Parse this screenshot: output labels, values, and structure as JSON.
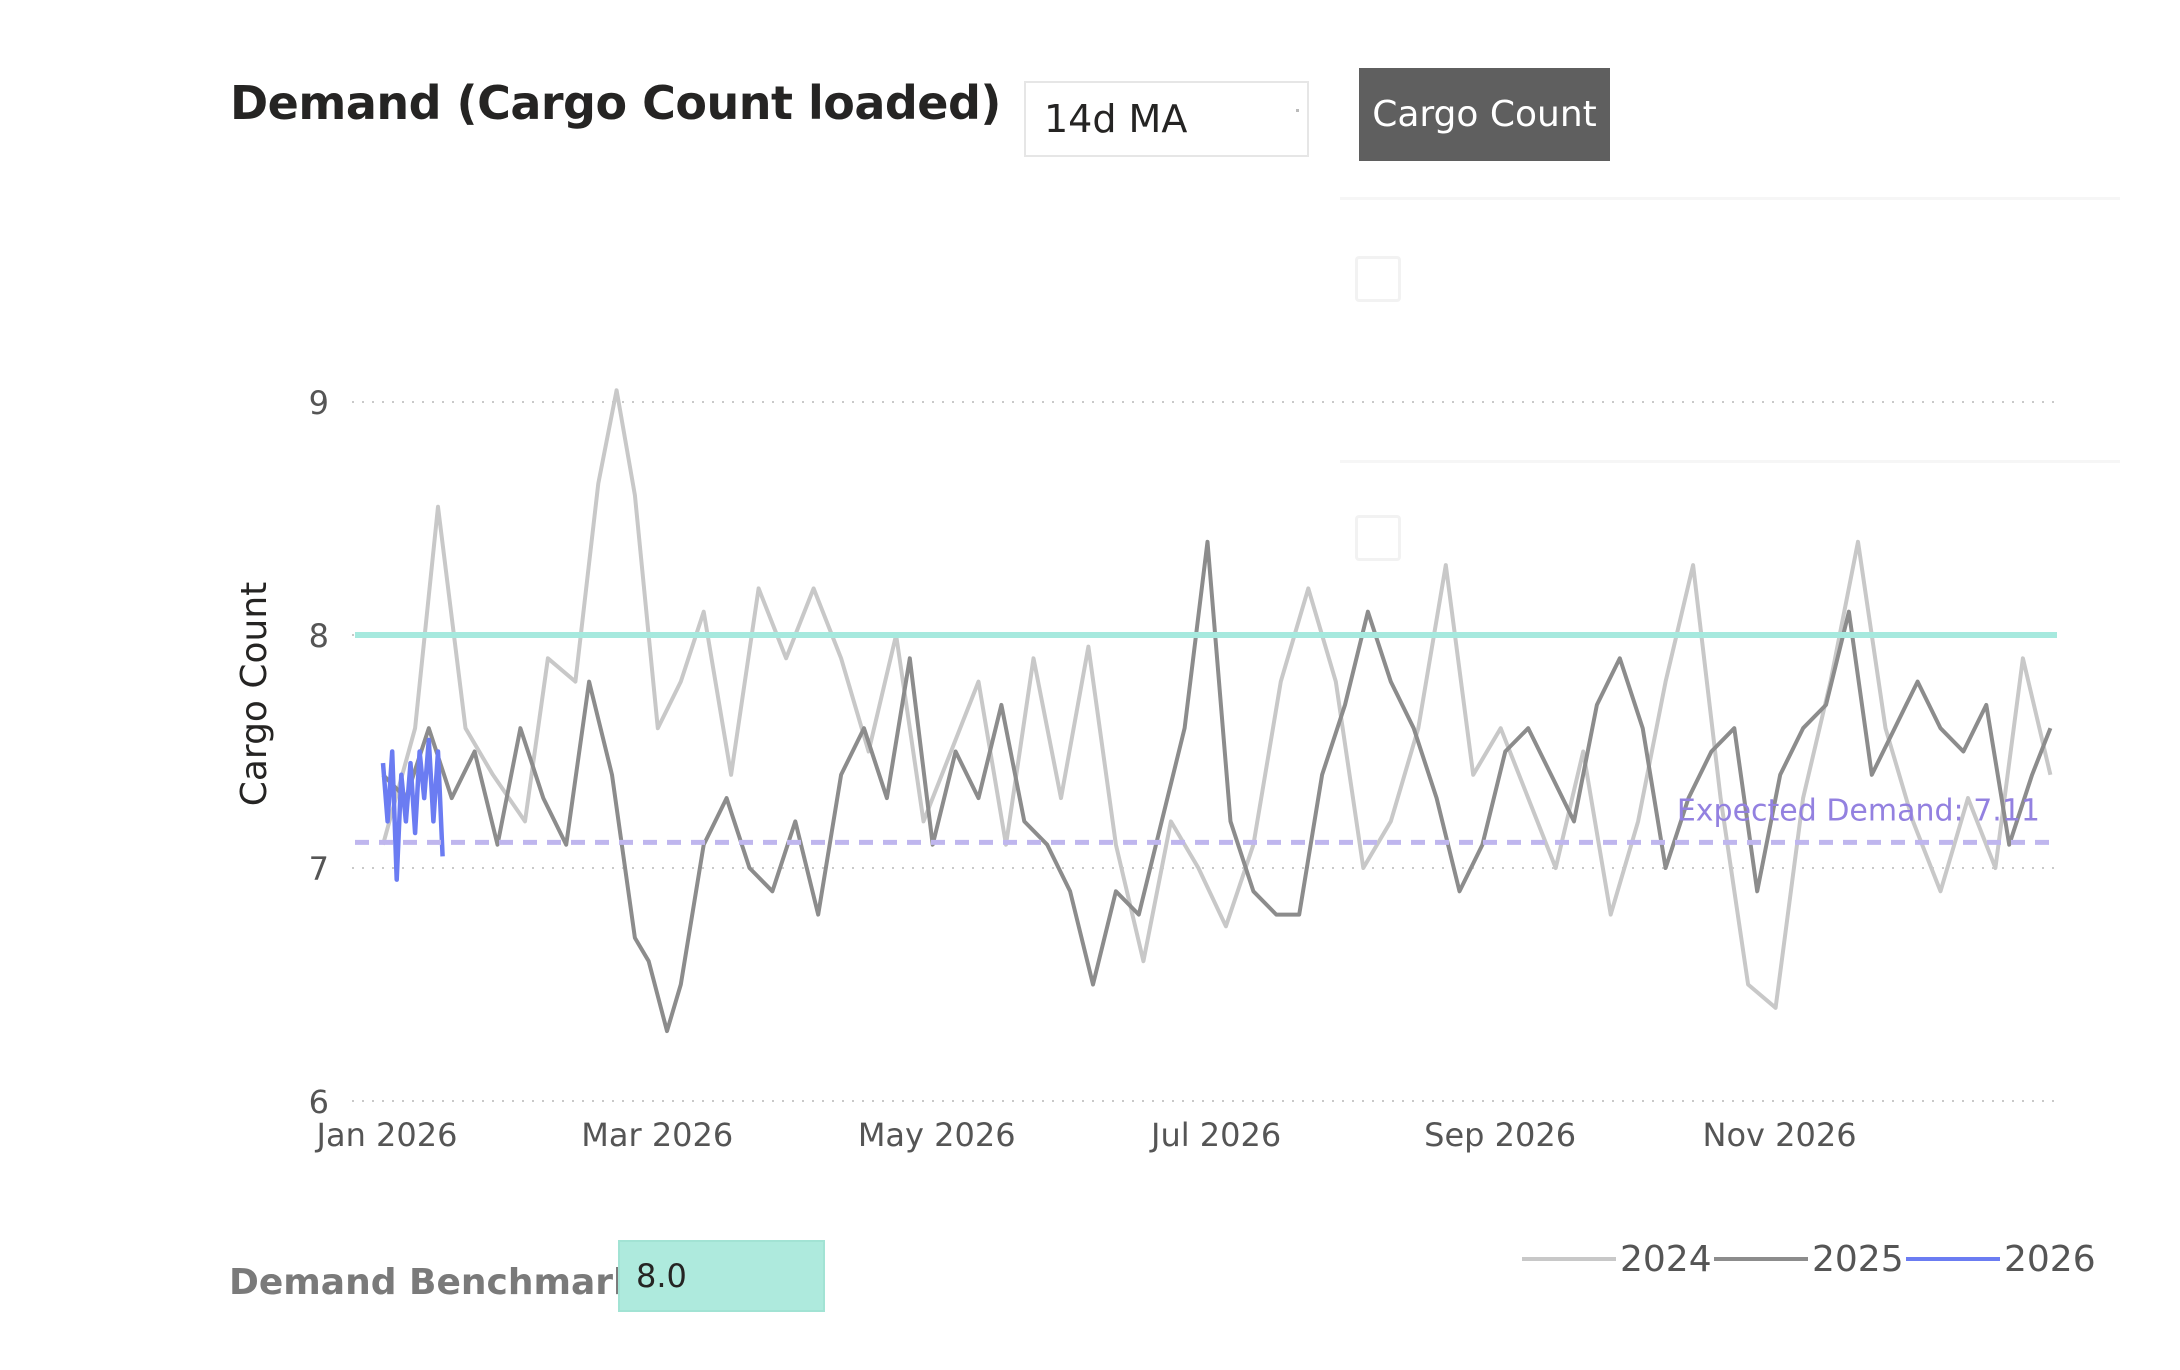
{
  "header": {
    "title": "Demand (Cargo Count loaded)",
    "ma_select_value": "14d MA",
    "metric_button_label": "Cargo Count"
  },
  "benchmark": {
    "label": "Demand Benchmark:",
    "value": "8.0"
  },
  "colors": {
    "series_2024": "#c8c8c8",
    "series_2025": "#8c8c8c",
    "series_2026": "#6b7cf2",
    "benchmark_line": "#a6e9de",
    "expected_line": "#bfb6ee",
    "expected_text": "#9381e0",
    "button_bg": "#5f5f5f",
    "input_bg": "#aeeadd"
  },
  "chart_data": {
    "type": "line",
    "title": "Demand (Cargo Count loaded)",
    "xlabel": "",
    "ylabel": "Cargo Count",
    "ylim": [
      6,
      9.3
    ],
    "yticks": [
      6,
      7,
      8,
      9
    ],
    "xlim_days": [
      0,
      365
    ],
    "x_ticks": [
      {
        "label": "Jan 2026",
        "day": 0
      },
      {
        "label": "Mar 2026",
        "day": 59
      },
      {
        "label": "May 2026",
        "day": 120
      },
      {
        "label": "Jul 2026",
        "day": 181
      },
      {
        "label": "Sep 2026",
        "day": 243
      },
      {
        "label": "Nov 2026",
        "day": 304
      }
    ],
    "grid": "horizontal dotted",
    "legend": {
      "position": "bottom-right",
      "entries": [
        "2024",
        "2025",
        "2026"
      ]
    },
    "reference_lines": [
      {
        "name": "Demand Benchmark",
        "value": 8.0,
        "style": "solid"
      },
      {
        "name": "Expected Demand",
        "value": 7.11,
        "style": "dashed",
        "label": "Expected Demand: 7.11"
      }
    ],
    "series": [
      {
        "name": "2024",
        "x_days": [
          0,
          7,
          12,
          18,
          24,
          31,
          36,
          42,
          47,
          51,
          55,
          60,
          65,
          70,
          76,
          82,
          88,
          94,
          100,
          106,
          112,
          118,
          124,
          130,
          136,
          142,
          148,
          154,
          160,
          166,
          172,
          178,
          184,
          190,
          196,
          202,
          208,
          214,
          220,
          226,
          232,
          238,
          244,
          250,
          256,
          262,
          268,
          274,
          280,
          286,
          292,
          298,
          304,
          310,
          316,
          322,
          328,
          334,
          340,
          346,
          352,
          358,
          364
        ],
        "values": [
          7.1,
          7.6,
          8.55,
          7.6,
          7.4,
          7.2,
          7.9,
          7.8,
          8.65,
          9.05,
          8.6,
          7.6,
          7.8,
          8.1,
          7.4,
          8.2,
          7.9,
          8.2,
          7.9,
          7.5,
          8.0,
          7.2,
          7.5,
          7.8,
          7.1,
          7.9,
          7.3,
          7.95,
          7.1,
          6.6,
          7.2,
          7.0,
          6.75,
          7.1,
          7.8,
          8.2,
          7.8,
          7.0,
          7.2,
          7.6,
          8.3,
          7.4,
          7.6,
          7.3,
          7.0,
          7.5,
          6.8,
          7.2,
          7.8,
          8.3,
          7.3,
          6.5,
          6.4,
          7.3,
          7.8,
          8.4,
          7.6,
          7.2,
          6.9,
          7.3,
          7.0,
          7.9,
          7.4
        ]
      },
      {
        "name": "2025",
        "x_days": [
          0,
          5,
          10,
          15,
          20,
          25,
          30,
          35,
          40,
          45,
          50,
          55,
          58,
          62,
          65,
          70,
          75,
          80,
          85,
          90,
          95,
          100,
          105,
          110,
          115,
          120,
          125,
          130,
          135,
          140,
          145,
          150,
          155,
          160,
          165,
          170,
          175,
          180,
          185,
          190,
          195,
          200,
          205,
          210,
          215,
          220,
          225,
          230,
          235,
          240,
          245,
          250,
          255,
          260,
          265,
          270,
          275,
          280,
          285,
          290,
          295,
          300,
          305,
          310,
          315,
          320,
          325,
          330,
          335,
          340,
          345,
          350,
          355,
          360,
          364
        ],
        "values": [
          7.4,
          7.3,
          7.6,
          7.3,
          7.5,
          7.1,
          7.6,
          7.3,
          7.1,
          7.8,
          7.4,
          6.7,
          6.6,
          6.3,
          6.5,
          7.1,
          7.3,
          7.0,
          6.9,
          7.2,
          6.8,
          7.4,
          7.6,
          7.3,
          7.9,
          7.1,
          7.5,
          7.3,
          7.7,
          7.2,
          7.1,
          6.9,
          6.5,
          6.9,
          6.8,
          7.2,
          7.6,
          8.4,
          7.2,
          6.9,
          6.8,
          6.8,
          7.4,
          7.7,
          8.1,
          7.8,
          7.6,
          7.3,
          6.9,
          7.1,
          7.5,
          7.6,
          7.4,
          7.2,
          7.7,
          7.9,
          7.6,
          7.0,
          7.3,
          7.5,
          7.6,
          6.9,
          7.4,
          7.6,
          7.7,
          8.1,
          7.4,
          7.6,
          7.8,
          7.6,
          7.5,
          7.7,
          7.1,
          7.4,
          7.6
        ]
      },
      {
        "name": "2026",
        "x_days": [
          0,
          1,
          2,
          3,
          4,
          5,
          6,
          7,
          8,
          9,
          10,
          11,
          12,
          13
        ],
        "values": [
          7.45,
          7.2,
          7.5,
          6.95,
          7.4,
          7.2,
          7.45,
          7.15,
          7.5,
          7.3,
          7.55,
          7.2,
          7.5,
          7.05
        ]
      }
    ]
  }
}
